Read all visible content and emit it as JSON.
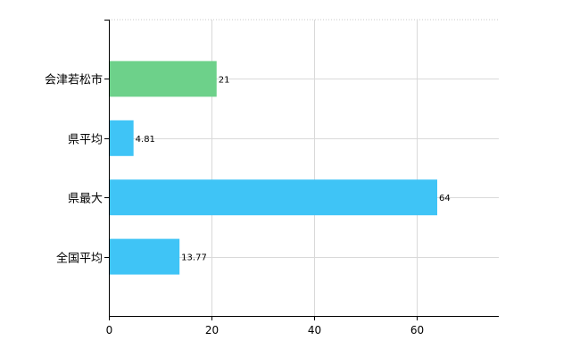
{
  "chart_data": {
    "type": "bar",
    "orientation": "horizontal",
    "categories": [
      "会津若松市",
      "県平均",
      "県最大",
      "全国平均"
    ],
    "values": [
      21,
      4.81,
      64,
      13.77
    ],
    "data_labels": [
      "21",
      "4.81",
      "64",
      "13.77"
    ],
    "bar_colors": [
      "#6dd18a",
      "#3fc4f6",
      "#3fc4f6",
      "#3fc4f6"
    ],
    "xlim": [
      0,
      76
    ],
    "xticks": [
      0,
      20,
      40,
      60
    ],
    "xtick_labels": [
      "0",
      "20",
      "40",
      "60"
    ],
    "grid": true,
    "legend": "none",
    "title": "",
    "xlabel": "",
    "ylabel": ""
  }
}
